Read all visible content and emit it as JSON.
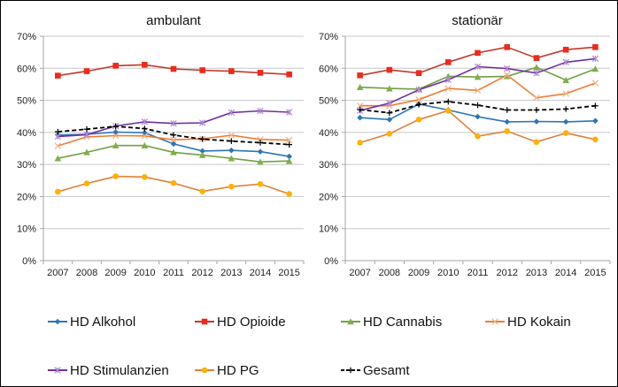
{
  "chart_data": [
    {
      "type": "line",
      "title": "ambulant",
      "xlabel": "",
      "ylabel": "",
      "categories": [
        "2007",
        "2008",
        "2009",
        "2010",
        "2011",
        "2012",
        "2013",
        "2014",
        "2015"
      ],
      "ylim": [
        0,
        70
      ],
      "yticks": [
        "0%",
        "10%",
        "20%",
        "30%",
        "40%",
        "50%",
        "60%",
        "70%"
      ],
      "grid": true,
      "series": [
        {
          "name": "HD Alkohol",
          "values": [
            39.2,
            39.4,
            40.1,
            39.9,
            36.4,
            34.2,
            34.4,
            34.0,
            32.5
          ]
        },
        {
          "name": "HD Opioide",
          "values": [
            57.7,
            59.1,
            60.8,
            61.1,
            59.8,
            59.4,
            59.1,
            58.6,
            58.1
          ]
        },
        {
          "name": "HD Cannabis",
          "values": [
            31.9,
            33.8,
            35.9,
            35.9,
            33.8,
            32.9,
            31.9,
            30.8,
            31.1
          ]
        },
        {
          "name": "HD Kokain",
          "values": [
            35.8,
            38.6,
            39.0,
            38.9,
            37.7,
            38.0,
            39.1,
            37.8,
            37.6
          ]
        },
        {
          "name": "HD Stimulanzien",
          "values": [
            38.7,
            39.3,
            42.0,
            43.3,
            42.8,
            43.0,
            46.2,
            46.7,
            46.3
          ]
        },
        {
          "name": "HD PG",
          "values": [
            21.5,
            24.1,
            26.3,
            26.1,
            24.2,
            21.6,
            23.1,
            23.9,
            20.8
          ]
        },
        {
          "name": "Gesamt",
          "values": [
            40.2,
            41.0,
            41.9,
            41.2,
            39.2,
            37.9,
            37.3,
            36.8,
            36.2
          ]
        }
      ]
    },
    {
      "type": "line",
      "title": "stationär",
      "xlabel": "",
      "ylabel": "",
      "categories": [
        "2007",
        "2008",
        "2009",
        "2010",
        "2011",
        "2012",
        "2013",
        "2014",
        "2015"
      ],
      "ylim": [
        0,
        70
      ],
      "yticks": [
        "0%",
        "10%",
        "20%",
        "30%",
        "40%",
        "50%",
        "60%",
        "70%"
      ],
      "grid": true,
      "series": [
        {
          "name": "HD Alkohol",
          "values": [
            44.6,
            44.0,
            48.8,
            47.0,
            44.9,
            43.3,
            43.4,
            43.3,
            43.6
          ]
        },
        {
          "name": "HD Opioide",
          "values": [
            57.8,
            59.5,
            58.5,
            61.9,
            64.8,
            66.6,
            63.2,
            65.8,
            66.6
          ]
        },
        {
          "name": "HD Cannabis",
          "values": [
            54.1,
            53.7,
            53.5,
            57.5,
            57.3,
            57.5,
            60.3,
            56.3,
            59.8
          ]
        },
        {
          "name": "HD Kokain",
          "values": [
            48.3,
            48.3,
            50.2,
            53.7,
            53.1,
            57.9,
            50.8,
            52.1,
            55.4
          ]
        },
        {
          "name": "HD Stimulanzien",
          "values": [
            46.8,
            49.1,
            53.3,
            56.4,
            60.5,
            59.9,
            58.5,
            61.9,
            63.0
          ]
        },
        {
          "name": "HD PG",
          "values": [
            36.8,
            39.6,
            44.0,
            46.8,
            38.8,
            40.4,
            37.0,
            39.8,
            37.8
          ]
        },
        {
          "name": "Gesamt",
          "values": [
            47.1,
            46.1,
            48.7,
            49.6,
            48.5,
            47.0,
            47.0,
            47.3,
            48.3
          ]
        }
      ]
    }
  ],
  "legend": {
    "items": [
      {
        "name": "HD Alkohol",
        "color": "#2e75b6",
        "marker": "diamond",
        "dash": false
      },
      {
        "name": "HD Opioide",
        "color": "#c0392b",
        "markerColor": "#ee2a1b",
        "marker": "square",
        "dash": false
      },
      {
        "name": "HD Cannabis",
        "color": "#70a043",
        "markerColor": "#7fae4c",
        "marker": "triangle",
        "dash": false
      },
      {
        "name": "HD Kokain",
        "color": "#ed7d31",
        "markerColor": "#f4b183",
        "marker": "x",
        "dash": false
      },
      {
        "name": "HD Stimulanzien",
        "color": "#7030a0",
        "markerColor": "#b38ad6",
        "marker": "star",
        "dash": false
      },
      {
        "name": "HD PG",
        "color": "#e0803a",
        "markerColor": "#ffb000",
        "marker": "circle",
        "dash": false
      },
      {
        "name": "Gesamt",
        "color": "#000000",
        "markerColor": "#000000",
        "marker": "plus",
        "dash": true
      }
    ]
  },
  "colors": {
    "grid": "#c8c8c8",
    "axis": "#a6a6a6"
  }
}
